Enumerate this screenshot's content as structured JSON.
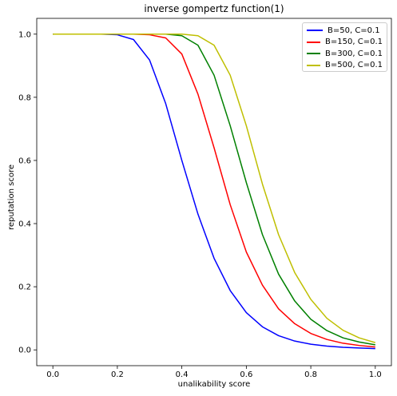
{
  "chart_data": {
    "type": "line",
    "title": "inverse gompertz function(1)",
    "xlabel": "unalikability score",
    "ylabel": "reputation score",
    "xlim": [
      -0.05,
      1.05
    ],
    "ylim": [
      -0.05,
      1.05
    ],
    "xticks": [
      "0.0",
      "0.2",
      "0.4",
      "0.6",
      "0.8",
      "1.0"
    ],
    "yticks": [
      "0.0",
      "0.2",
      "0.4",
      "0.6",
      "0.8",
      "1.0"
    ],
    "legend_position": "top-right",
    "grid": false,
    "x": [
      0,
      0.05,
      0.1,
      0.15,
      0.2,
      0.25,
      0.3,
      0.35,
      0.4,
      0.45,
      0.5,
      0.55,
      0.6,
      0.65,
      0.7,
      0.75,
      0.8,
      0.85,
      0.9,
      0.95,
      1.0
    ],
    "series": [
      {
        "name": "B=50, C=0.1",
        "color": "#0000ff",
        "values": [
          1.0,
          1.0,
          1.0,
          1.0,
          0.998,
          0.983,
          0.918,
          0.78,
          0.6,
          0.43,
          0.29,
          0.188,
          0.118,
          0.073,
          0.045,
          0.028,
          0.018,
          0.012,
          0.008,
          0.006,
          0.004
        ]
      },
      {
        "name": "B=150, C=0.1",
        "color": "#ff0000",
        "values": [
          1.0,
          1.0,
          1.0,
          1.0,
          1.0,
          1.0,
          0.998,
          0.988,
          0.937,
          0.81,
          0.64,
          0.46,
          0.31,
          0.205,
          0.13,
          0.083,
          0.052,
          0.033,
          0.021,
          0.014,
          0.009
        ]
      },
      {
        "name": "B=300, C=0.1",
        "color": "#008000",
        "values": [
          1.0,
          1.0,
          1.0,
          1.0,
          1.0,
          1.0,
          1.0,
          1.0,
          0.995,
          0.965,
          0.87,
          0.71,
          0.53,
          0.365,
          0.24,
          0.155,
          0.097,
          0.061,
          0.038,
          0.025,
          0.016
        ]
      },
      {
        "name": "B=500, C=0.1",
        "color": "#bfbf00",
        "values": [
          1.0,
          1.0,
          1.0,
          1.0,
          1.0,
          1.0,
          1.0,
          1.0,
          1.0,
          0.995,
          0.965,
          0.87,
          0.71,
          0.525,
          0.365,
          0.245,
          0.16,
          0.1,
          0.062,
          0.038,
          0.023
        ]
      }
    ]
  }
}
